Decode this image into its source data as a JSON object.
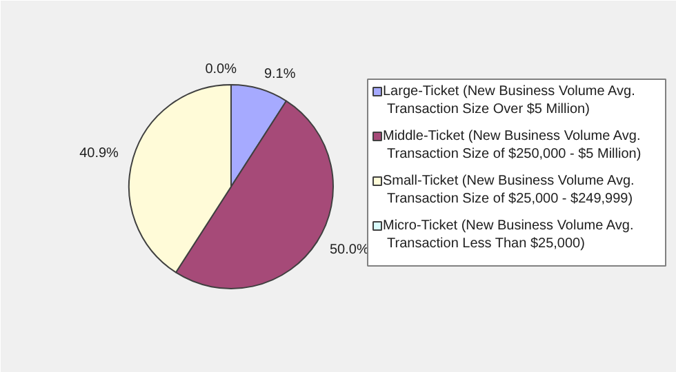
{
  "chart_data": {
    "type": "pie",
    "categories": [
      "Large-Ticket (New Business Volume Avg. Transaction Size Over $5 Million)",
      "Middle-Ticket (New Business Volume Avg. Transaction Size of $250,000 - $5 Million)",
      "Small-Ticket (New Business Volume Avg. Transaction Size of $25,000 - $249,999)",
      "Micro-Ticket (New Business Volume Avg. Transaction Less Than $25,000)"
    ],
    "values": [
      9.1,
      50.0,
      40.9,
      0.0
    ],
    "value_labels": [
      "9.1%",
      "50.0%",
      "40.9%",
      "0.0%"
    ],
    "colors": [
      "#a6aaff",
      "#a64a78",
      "#fffbd8",
      "#d8fbfb"
    ],
    "legend": "right"
  }
}
